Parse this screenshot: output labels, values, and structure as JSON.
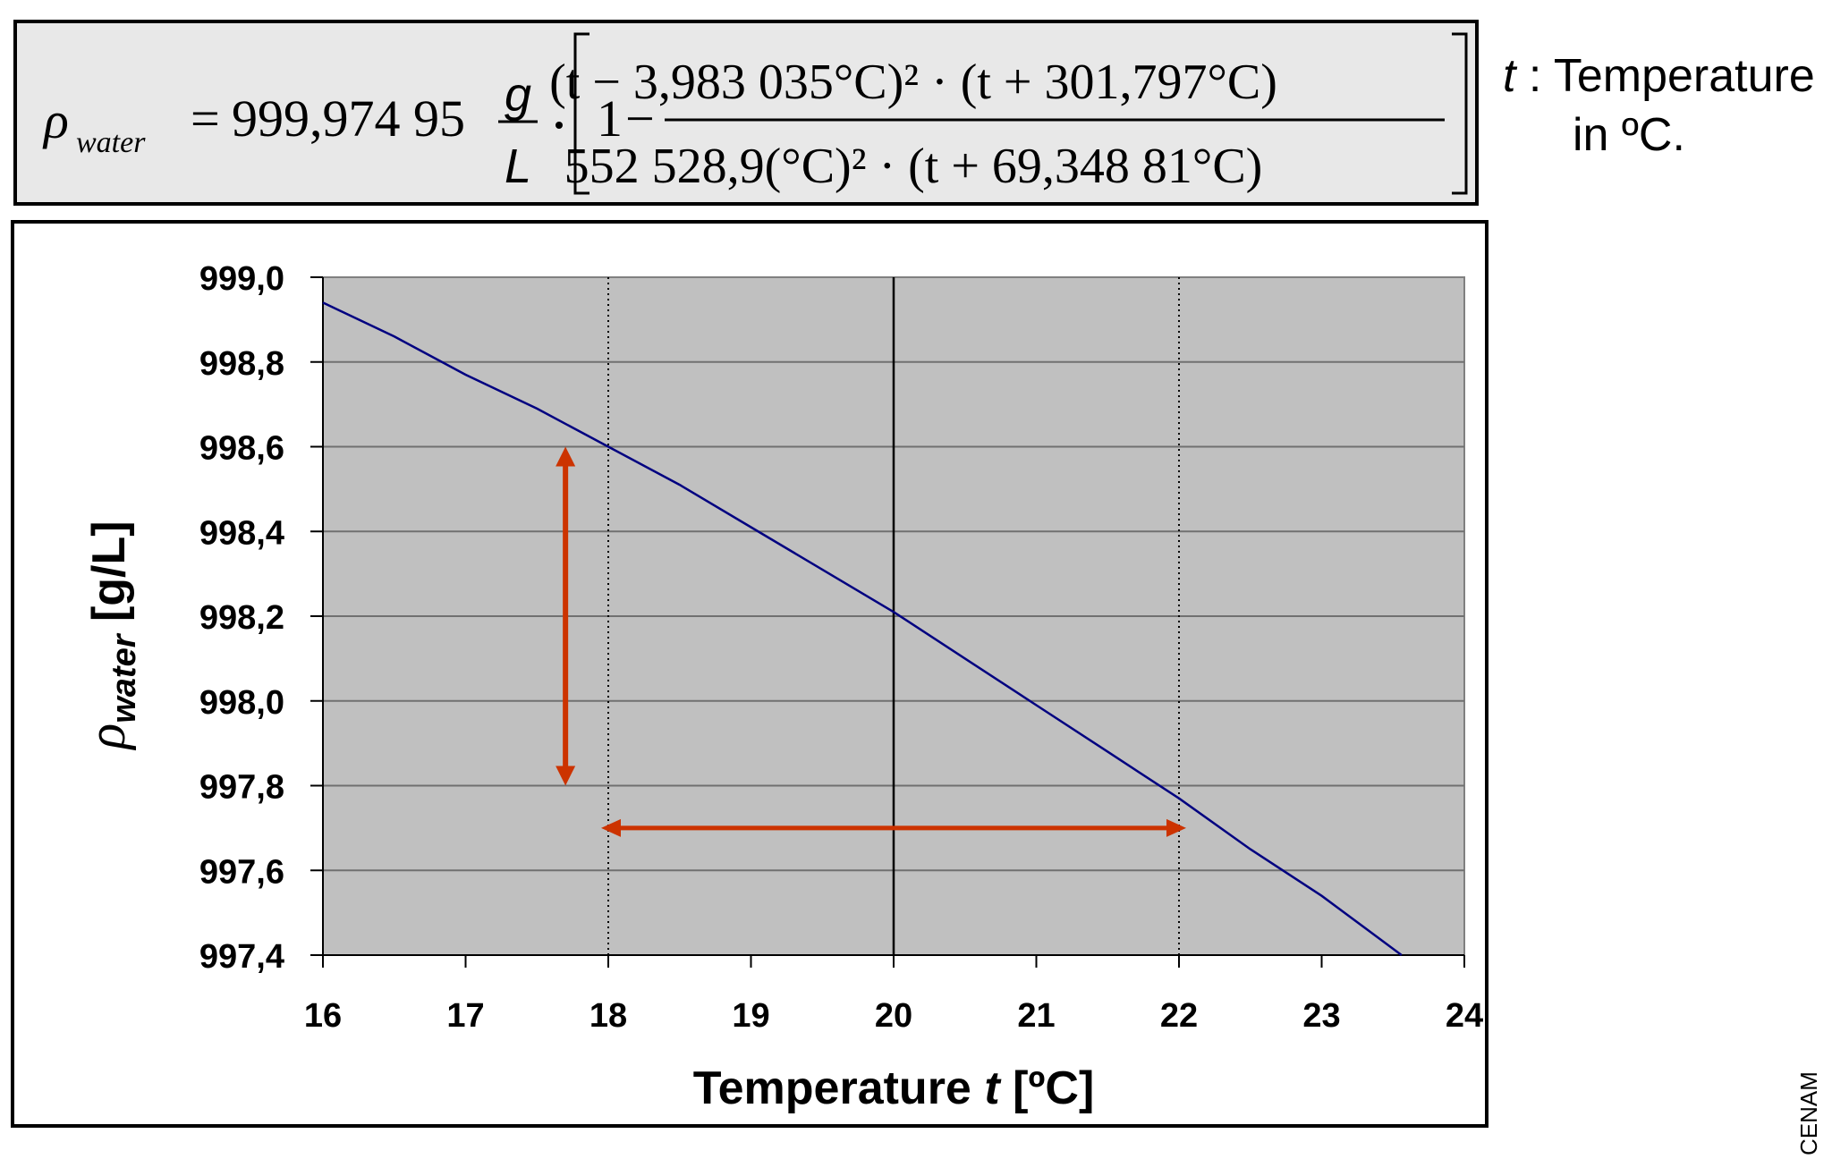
{
  "formula": {
    "lhs_symbol": "ρ",
    "lhs_subscript": "water",
    "equals": "=",
    "constant": "999,974 95",
    "unit_num": "g",
    "unit_den": "L",
    "one": "1",
    "minus": "−",
    "numerator": "(t − 3,983 035°C)² · (t + 301,797°C)",
    "denominator": "552 528,9(°C)² · (t + 69,348 81°C)"
  },
  "note": {
    "var": "t",
    "line1": " : Temperature",
    "line2": "in ºC."
  },
  "credit": "CENAM",
  "chart_data": {
    "type": "line",
    "xlabel_main": "Temperature ",
    "xlabel_var": "t",
    "xlabel_unit": " [ºC]",
    "ylabel_symbol": "ρ",
    "ylabel_subscript": "water",
    "ylabel_unit": " [g/L]",
    "xlim": [
      16,
      24
    ],
    "ylim": [
      997.4,
      999.0
    ],
    "x_ticks": [
      "16",
      "17",
      "18",
      "19",
      "20",
      "21",
      "22",
      "23",
      "24"
    ],
    "y_ticks": [
      "997,4",
      "997,6",
      "997,8",
      "998,0",
      "998,2",
      "998,4",
      "998,6",
      "998,8",
      "999,0"
    ],
    "grid": true,
    "plot_background": "#c0c0c0",
    "line_color": "#000080",
    "annotation_color": "#cc3300",
    "series": [
      {
        "x": [
          16,
          16.5,
          17,
          17.5,
          18,
          18.5,
          19,
          19.5,
          20,
          20.5,
          21,
          21.5,
          22,
          22.5,
          23,
          23.56
        ],
        "y": [
          998.94,
          998.86,
          998.77,
          998.69,
          998.6,
          998.51,
          998.41,
          998.31,
          998.21,
          998.1,
          997.99,
          997.88,
          997.77,
          997.65,
          997.54,
          997.4
        ]
      }
    ],
    "reference_lines": [
      {
        "x": 18,
        "style": "dotted"
      },
      {
        "x": 20,
        "style": "solid"
      },
      {
        "x": 22,
        "style": "dotted"
      }
    ],
    "annotations": [
      {
        "type": "double-arrow-vertical",
        "x": 17.7,
        "y1": 997.8,
        "y2": 998.6
      },
      {
        "type": "double-arrow-horizontal",
        "y": 997.7,
        "x1": 18,
        "x2": 22
      }
    ]
  }
}
